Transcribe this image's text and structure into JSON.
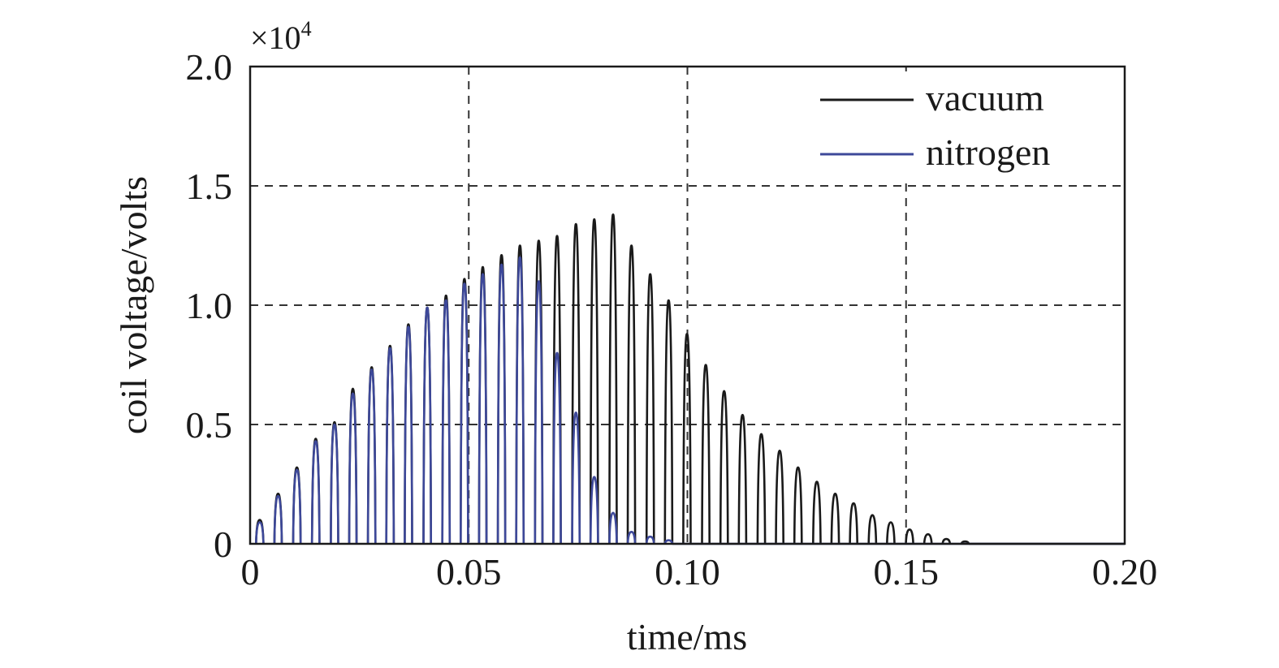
{
  "chart_data": {
    "type": "line",
    "title": "",
    "xlabel": "time/ms",
    "ylabel": "coil voltage/volts",
    "y_multiplier_label": {
      "base": "×10",
      "exponent": "4"
    },
    "xlim": [
      0,
      0.2
    ],
    "ylim": [
      0,
      20000
    ],
    "x_ticks": [
      {
        "value": 0,
        "label": "0"
      },
      {
        "value": 0.05,
        "label": "0.05"
      },
      {
        "value": 0.1,
        "label": "0.10"
      },
      {
        "value": 0.15,
        "label": "0.15"
      },
      {
        "value": 0.2,
        "label": "0.20"
      }
    ],
    "y_ticks": [
      {
        "value": 0,
        "label": "0"
      },
      {
        "value": 5000,
        "label": "0.5"
      },
      {
        "value": 10000,
        "label": "1.0"
      },
      {
        "value": 15000,
        "label": "1.5"
      },
      {
        "value": 20000,
        "label": "2.0"
      }
    ],
    "grid": true,
    "grid_style": "dashed",
    "legend_position": "top-right",
    "series": [
      {
        "name": "vacuum",
        "color": "#1a1a1a",
        "pulse_width": 0.0017,
        "peaks": [
          {
            "x": 0.0022,
            "y": 1000
          },
          {
            "x": 0.0064,
            "y": 2100
          },
          {
            "x": 0.0107,
            "y": 3200
          },
          {
            "x": 0.015,
            "y": 4400
          },
          {
            "x": 0.0193,
            "y": 5100
          },
          {
            "x": 0.0235,
            "y": 6500
          },
          {
            "x": 0.0278,
            "y": 7400
          },
          {
            "x": 0.032,
            "y": 8300
          },
          {
            "x": 0.0362,
            "y": 9200
          },
          {
            "x": 0.0405,
            "y": 9900
          },
          {
            "x": 0.0448,
            "y": 10400
          },
          {
            "x": 0.049,
            "y": 11100
          },
          {
            "x": 0.0532,
            "y": 11600
          },
          {
            "x": 0.0575,
            "y": 12100
          },
          {
            "x": 0.0617,
            "y": 12500
          },
          {
            "x": 0.066,
            "y": 12700
          },
          {
            "x": 0.0702,
            "y": 12900
          },
          {
            "x": 0.0745,
            "y": 13400
          },
          {
            "x": 0.0787,
            "y": 13600
          },
          {
            "x": 0.083,
            "y": 13800
          },
          {
            "x": 0.0872,
            "y": 12500
          },
          {
            "x": 0.0915,
            "y": 11300
          },
          {
            "x": 0.0957,
            "y": 10200
          },
          {
            "x": 0.0999,
            "y": 8800
          },
          {
            "x": 0.1042,
            "y": 7500
          },
          {
            "x": 0.1084,
            "y": 6400
          },
          {
            "x": 0.1126,
            "y": 5400
          },
          {
            "x": 0.1169,
            "y": 4600
          },
          {
            "x": 0.1211,
            "y": 3900
          },
          {
            "x": 0.1253,
            "y": 3200
          },
          {
            "x": 0.1296,
            "y": 2600
          },
          {
            "x": 0.1338,
            "y": 2100
          },
          {
            "x": 0.138,
            "y": 1700
          },
          {
            "x": 0.1423,
            "y": 1200
          },
          {
            "x": 0.1465,
            "y": 900
          },
          {
            "x": 0.1508,
            "y": 600
          },
          {
            "x": 0.155,
            "y": 400
          },
          {
            "x": 0.1592,
            "y": 200
          },
          {
            "x": 0.1635,
            "y": 100
          }
        ]
      },
      {
        "name": "nitrogen",
        "color": "#3d4899",
        "pulse_width": 0.0017,
        "peaks": [
          {
            "x": 0.0022,
            "y": 900
          },
          {
            "x": 0.0064,
            "y": 2000
          },
          {
            "x": 0.0107,
            "y": 3100
          },
          {
            "x": 0.015,
            "y": 4300
          },
          {
            "x": 0.0193,
            "y": 5000
          },
          {
            "x": 0.0235,
            "y": 6300
          },
          {
            "x": 0.0278,
            "y": 7300
          },
          {
            "x": 0.032,
            "y": 8200
          },
          {
            "x": 0.0362,
            "y": 9100
          },
          {
            "x": 0.0405,
            "y": 9900
          },
          {
            "x": 0.0448,
            "y": 10200
          },
          {
            "x": 0.049,
            "y": 10900
          },
          {
            "x": 0.0532,
            "y": 11300
          },
          {
            "x": 0.0575,
            "y": 11700
          },
          {
            "x": 0.0617,
            "y": 12000
          },
          {
            "x": 0.066,
            "y": 11000
          },
          {
            "x": 0.0702,
            "y": 8000
          },
          {
            "x": 0.0745,
            "y": 5500
          },
          {
            "x": 0.0787,
            "y": 2800
          },
          {
            "x": 0.083,
            "y": 1300
          },
          {
            "x": 0.0872,
            "y": 500
          },
          {
            "x": 0.0915,
            "y": 300
          },
          {
            "x": 0.0957,
            "y": 150
          }
        ]
      }
    ]
  }
}
